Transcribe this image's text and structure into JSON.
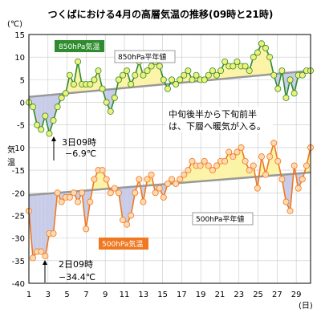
{
  "chart_data": {
    "type": "line",
    "title": "つくばにおける4月の高層気温の推移(09時と21時)",
    "ylabel": "気温",
    "y_unit": "(℃)",
    "x_unit": "(日)",
    "ylim": [
      -40,
      15
    ],
    "xlim": [
      1,
      30.5
    ],
    "y_ticks": [
      "15",
      "10",
      "5",
      "0",
      "-5",
      "-10",
      "-15",
      "-20",
      "-25",
      "-30",
      "-35",
      "-40"
    ],
    "y_tick_values": [
      15,
      10,
      5,
      0,
      -5,
      -10,
      -15,
      -20,
      -25,
      -30,
      -35,
      -40
    ],
    "x_ticks": [
      "1",
      "3",
      "5",
      "7",
      "9",
      "11",
      "13",
      "15",
      "17",
      "19",
      "21",
      "23",
      "25",
      "27",
      "29"
    ],
    "x_tick_values": [
      1,
      3,
      5,
      7,
      9,
      11,
      13,
      15,
      17,
      19,
      21,
      23,
      25,
      27,
      29
    ],
    "grid": true,
    "series": [
      {
        "name": "850hPa気温",
        "color": "#2e8b2e",
        "marker_color": "#f0f07a",
        "values": [
          0,
          -1,
          -5,
          -6,
          -3,
          -6.9,
          -4,
          -1,
          1,
          2,
          6,
          4,
          9,
          4,
          4,
          4,
          5,
          7,
          3,
          0,
          -2,
          1,
          5,
          6,
          7,
          4,
          6,
          9,
          6,
          7,
          8,
          9,
          8,
          5,
          3,
          5,
          4,
          5,
          6,
          7,
          5,
          6,
          5,
          5,
          6,
          7,
          6,
          7,
          9,
          8,
          8,
          9,
          8,
          8,
          7,
          10,
          11,
          13,
          12,
          10,
          6,
          3,
          7,
          1,
          5,
          2,
          6,
          6,
          7,
          7
        ]
      },
      {
        "name": "850hPa平年値",
        "color": "#999999",
        "start": 1.2,
        "end": 7
      },
      {
        "name": "500hPa気温",
        "color": "#f07820",
        "marker_color": "#ffd9b0",
        "values": [
          -24,
          -34.4,
          -33,
          -33,
          -34,
          -29,
          -29,
          -20,
          -22,
          -21,
          -21,
          -20,
          -22,
          -20,
          -28,
          -22,
          -17,
          -15,
          -15,
          -17,
          -20,
          -19,
          -20,
          -26,
          -27,
          -25,
          -20,
          -17,
          -22,
          -17,
          -16,
          -20,
          -19,
          -21,
          -18,
          -17,
          -18,
          -17,
          -16,
          -15,
          -13,
          -14,
          -14,
          -13,
          -14,
          -15,
          -14,
          -13,
          -13,
          -11,
          -12,
          -11,
          -10,
          -13,
          -15,
          -14,
          -19,
          -12,
          -16,
          -12,
          -9,
          -13,
          -17,
          -22,
          -24,
          -14,
          -19,
          -17,
          -14,
          -10
        ]
      },
      {
        "name": "500hPa平年値",
        "color": "#999999",
        "start": -20.5,
        "end": -15.5
      }
    ],
    "annotations": [
      {
        "text_lines": [
          "3日09時",
          "−6.9℃"
        ]
      },
      {
        "text_lines": [
          "2日09時",
          "−34.4℃"
        ]
      },
      {
        "text_lines": [
          "中旬後半から下旬前半",
          "は、下層へ暖気が入る。"
        ]
      }
    ]
  }
}
